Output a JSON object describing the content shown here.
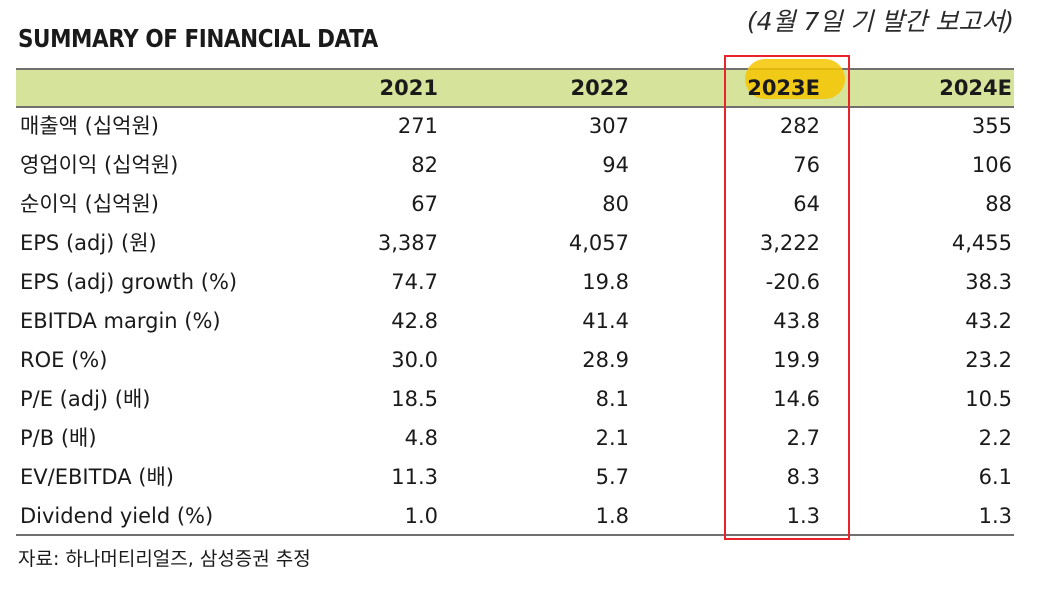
{
  "title": "SUMMARY OF FINANCIAL DATA",
  "note": "(4월 7일 기 발간 보고서)",
  "columns": [
    "2021",
    "2022",
    "2023E",
    "2024E"
  ],
  "highlight_column": "2023E",
  "colors": {
    "header_bg": "#d6e39a",
    "highlight": "#f6c500",
    "box": "#e8232a"
  },
  "rows": [
    {
      "label": "매출액 (십억원)",
      "values": [
        "271",
        "307",
        "282",
        "355"
      ]
    },
    {
      "label": "영업이익 (십억원)",
      "values": [
        "82",
        "94",
        "76",
        "106"
      ]
    },
    {
      "label": "순이익 (십억원)",
      "values": [
        "67",
        "80",
        "64",
        "88"
      ]
    },
    {
      "label": "EPS (adj) (원)",
      "values": [
        "3,387",
        "4,057",
        "3,222",
        "4,455"
      ]
    },
    {
      "label": "EPS (adj) growth (%)",
      "values": [
        "74.7",
        "19.8",
        "-20.6",
        "38.3"
      ]
    },
    {
      "label": "EBITDA margin (%)",
      "values": [
        "42.8",
        "41.4",
        "43.8",
        "43.2"
      ]
    },
    {
      "label": "ROE (%)",
      "values": [
        "30.0",
        "28.9",
        "19.9",
        "23.2"
      ]
    },
    {
      "label": "P/E (adj) (배)",
      "values": [
        "18.5",
        "8.1",
        "14.6",
        "10.5"
      ]
    },
    {
      "label": "P/B (배)",
      "values": [
        "4.8",
        "2.1",
        "2.7",
        "2.2"
      ]
    },
    {
      "label": "EV/EBITDA (배)",
      "values": [
        "11.3",
        "5.7",
        "8.3",
        "6.1"
      ]
    },
    {
      "label": "Dividend yield (%)",
      "values": [
        "1.0",
        "1.8",
        "1.3",
        "1.3"
      ]
    }
  ],
  "source": "자료: 하나머티리얼즈, 삼성증권 추정"
}
